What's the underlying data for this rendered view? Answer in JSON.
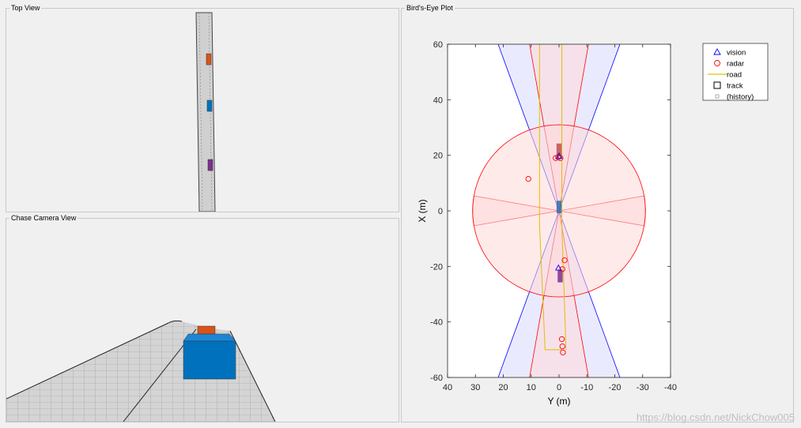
{
  "panels": {
    "top_view": {
      "title": "Top View"
    },
    "chase_view": {
      "title": "Chase Camera View"
    },
    "birds_eye": {
      "title": "Bird's-Eye Plot"
    }
  },
  "colors": {
    "vision": "#0000ff",
    "radar": "#ff0000",
    "road": "#e0c000",
    "vision_fill": "#d8d8ff",
    "radar_fill": "#ffd8d8",
    "lead_car": "#d95319",
    "ego_car": "#0072bd",
    "follow_car": "#7e2f8e"
  },
  "chart_data": {
    "type": "scatter",
    "xlabel": "Y (m)",
    "ylabel": "X (m)",
    "xlim": [
      40,
      -40
    ],
    "ylim": [
      -60,
      60
    ],
    "x_ticks": [
      40,
      30,
      20,
      10,
      0,
      -10,
      -20,
      -30,
      -40
    ],
    "x_tick_labels": [
      "40",
      "30",
      "20",
      "10",
      "0",
      "-10",
      "-20",
      "-30",
      "-40"
    ],
    "y_ticks": [
      60,
      40,
      20,
      0,
      -20,
      -40,
      -60
    ],
    "y_tick_labels": [
      "60",
      "40",
      "20",
      "0",
      "-20",
      "-40",
      "-60"
    ],
    "x_reversed": true,
    "grid": false,
    "legend_position": "top-right",
    "legend": [
      {
        "label": "vision",
        "marker": "triangle-icon"
      },
      {
        "label": "radar",
        "marker": "circle-icon"
      },
      {
        "label": "road",
        "marker": "line-icon"
      },
      {
        "label": "track",
        "marker": "square-icon"
      },
      {
        "label": "(history)",
        "marker": "small-square-icon"
      }
    ],
    "radar_detections": [
      {
        "y": 11,
        "x": 11.5
      },
      {
        "y": 1.2,
        "x": 19.0
      },
      {
        "y": 0.3,
        "x": 19.3
      },
      {
        "y": -0.5,
        "x": 19.0
      },
      {
        "y": -2.0,
        "x": -17.8
      },
      {
        "y": -1.2,
        "x": -21.0
      },
      {
        "y": -1.0,
        "x": -46.2
      },
      {
        "y": -1.2,
        "x": -48.8
      },
      {
        "y": -1.4,
        "x": -51.0
      }
    ],
    "vision_detections": [
      {
        "y": 0.0,
        "x": 19.8
      },
      {
        "y": 0.2,
        "x": -20.5
      }
    ],
    "tracks": [
      {
        "y": 0.0,
        "x": 22.0,
        "length": 4.5,
        "width": 1.8
      },
      {
        "y": -0.4,
        "x": -23.5,
        "length": 4.5,
        "width": 1.8
      },
      {
        "y": 0.0,
        "x": 1.4,
        "length": 4.5,
        "width": 1.8
      }
    ],
    "road_boundaries": [
      [
        {
          "y": 7,
          "x": 60
        },
        {
          "y": 7,
          "x": -5
        },
        {
          "y": 5,
          "x": -50
        },
        {
          "y": -1,
          "x": -50
        }
      ],
      [
        {
          "y": -1,
          "x": 60
        },
        {
          "y": -1,
          "x": -5
        },
        {
          "y": -2.5,
          "x": -50
        }
      ]
    ],
    "coverage_areas": [
      {
        "sensor": "vision",
        "direction": "front",
        "max_range": 70,
        "fov": 40
      },
      {
        "sensor": "vision",
        "direction": "rear",
        "max_range": 70,
        "fov": 40
      },
      {
        "sensor": "radar",
        "direction": "front",
        "max_range": 62,
        "fov": 20
      },
      {
        "sensor": "radar",
        "direction": "rear",
        "max_range": 62,
        "fov": 20
      },
      {
        "sensor": "radar",
        "direction": "left",
        "max_range": 31,
        "fov": 20
      },
      {
        "sensor": "radar",
        "direction": "right",
        "max_range": 31,
        "fov": 20
      },
      {
        "sensor": "radar",
        "direction": "wide",
        "max_range": 31,
        "fov": 360
      }
    ]
  },
  "watermark": "https://blog.csdn.net/NickChow005"
}
